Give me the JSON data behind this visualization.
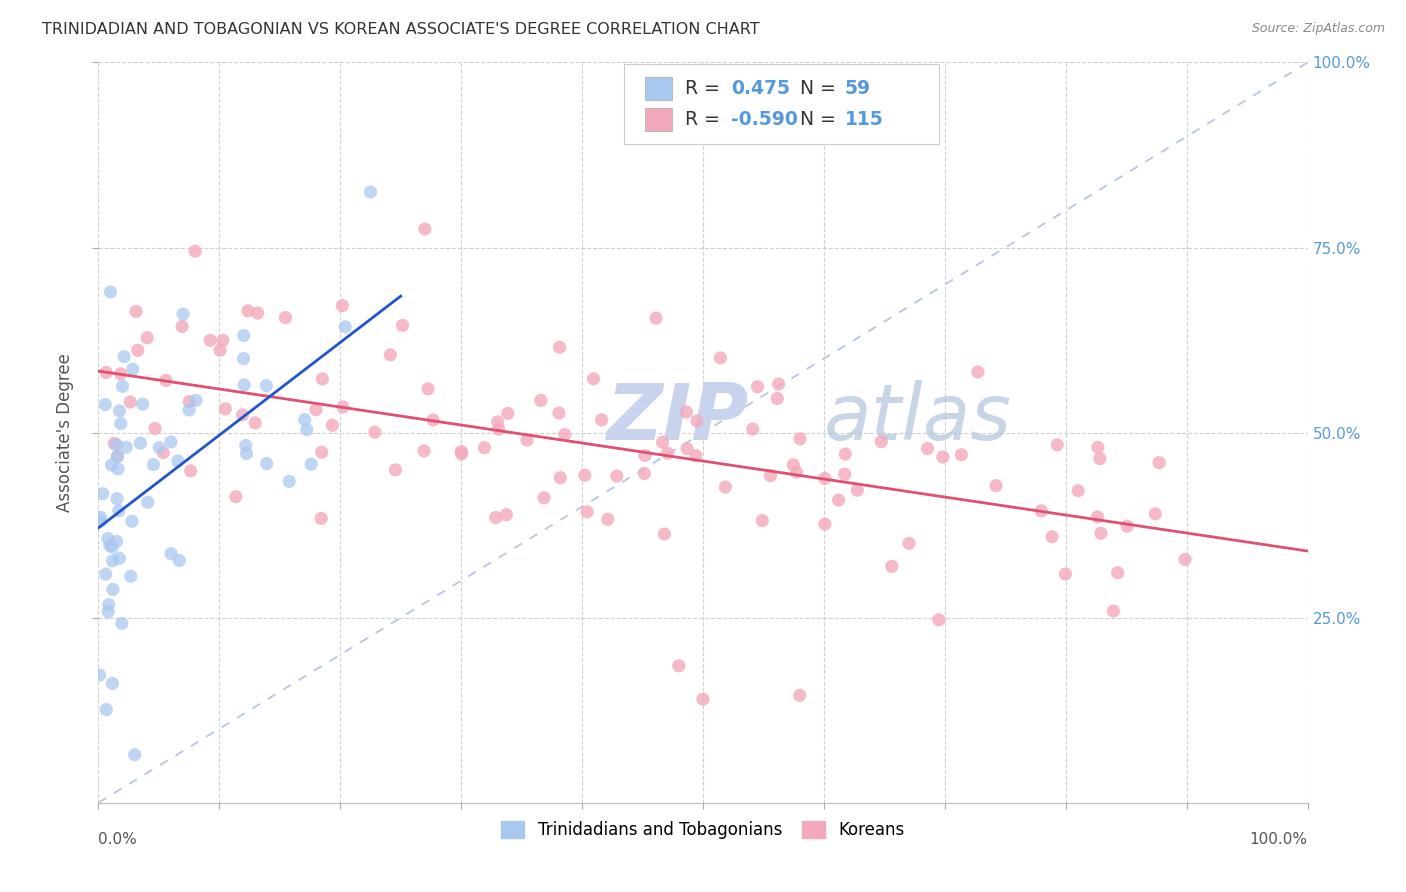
{
  "title": "TRINIDADIAN AND TOBAGONIAN VS KOREAN ASSOCIATE'S DEGREE CORRELATION CHART",
  "source": "Source: ZipAtlas.com",
  "ylabel": "Associate's Degree",
  "xlim": [
    0.0,
    1.0
  ],
  "ylim": [
    0.0,
    1.0
  ],
  "ytick_labels": [
    "25.0%",
    "50.0%",
    "75.0%",
    "100.0%"
  ],
  "ytick_values": [
    0.25,
    0.5,
    0.75,
    1.0
  ],
  "xtick_values": [
    0.0,
    0.1,
    0.2,
    0.3,
    0.4,
    0.5,
    0.6,
    0.7,
    0.8,
    0.9,
    1.0
  ],
  "xlabel_ticks_show": [
    0.0,
    1.0
  ],
  "xlabel_labels_show": [
    "0.0%",
    "100.0%"
  ],
  "r_trin": 0.475,
  "n_trin": 59,
  "r_korean": -0.59,
  "n_korean": 115,
  "color_trin": "#a8c8f0",
  "color_korean": "#f4a8bb",
  "line_color_trin": "#2255cc",
  "line_color_korean": "#e05070",
  "diagonal_color": "#aabbdd",
  "watermark_zip_color": "#c8d8f0",
  "watermark_atlas_color": "#aabbcc",
  "background_color": "#ffffff",
  "grid_color": "#cccccc",
  "right_label_color": "#5599dd",
  "title_color": "#333333",
  "source_color": "#888888",
  "legend_box_color": "#dddddd",
  "value_color": "#5599dd"
}
